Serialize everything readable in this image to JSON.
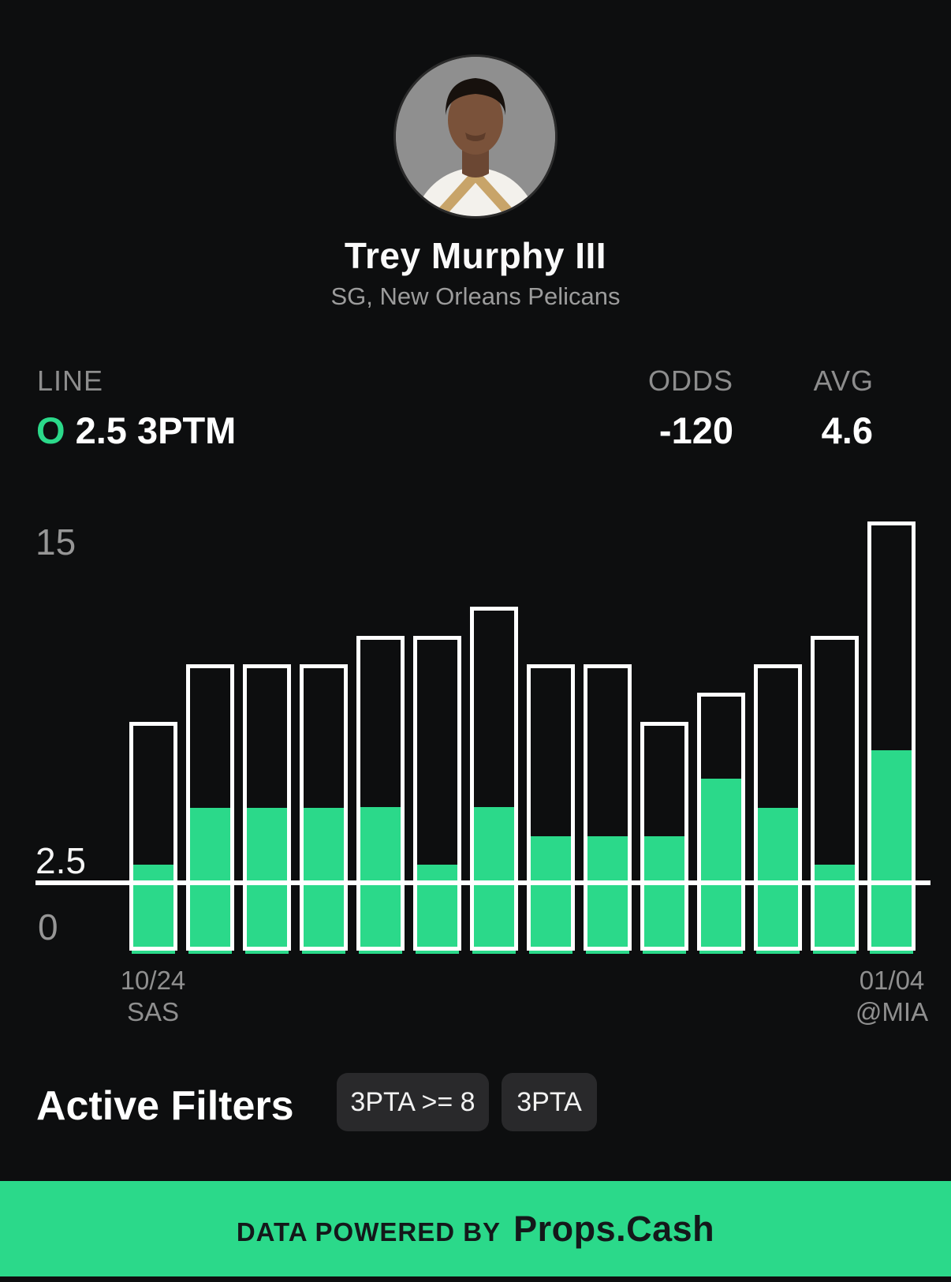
{
  "player": {
    "name": "Trey Murphy III",
    "subtitle": "SG, New Orleans Pelicans"
  },
  "bet": {
    "line_label": "LINE",
    "over_indicator": "O",
    "line_value": "2.5 3PTM",
    "odds_label": "ODDS",
    "odds_value": "-120",
    "avg_label": "AVG",
    "avg_value": "4.6"
  },
  "chart_data": {
    "type": "bar",
    "title": "3PTM made (green fill) vs 3PTA attempts (outlined) per game",
    "y_ticks": [
      "15",
      "2.5",
      "0"
    ],
    "ylim": [
      0,
      15
    ],
    "threshold": 2.5,
    "grid": false,
    "categories_note": "14 games, only first and last dates labeled",
    "series": [
      {
        "name": "3PTA",
        "style": "outline",
        "values": [
          8,
          10,
          10,
          10,
          11,
          11,
          12,
          10,
          10,
          8,
          9,
          10,
          11,
          15
        ]
      },
      {
        "name": "3PTM",
        "style": "fill",
        "values": [
          3,
          5,
          5,
          5,
          5,
          3,
          5,
          4,
          4,
          4,
          6,
          5,
          3,
          7
        ]
      }
    ],
    "x_axis": {
      "first": {
        "date": "10/24",
        "opponent": "SAS"
      },
      "last": {
        "date": "01/04",
        "opponent": "@MIA"
      }
    }
  },
  "filters": {
    "title": "Active Filters",
    "chips": [
      "3PTA >= 8",
      "3PTA"
    ]
  },
  "footer": {
    "powered_by": "DATA POWERED BY",
    "brand": "Props.Cash"
  },
  "colors": {
    "accent_green": "#2bd98a",
    "background": "#0d0e0f",
    "chip_background": "#29292b",
    "muted_text": "#8f8f8f",
    "footer_text": "#14181a"
  }
}
